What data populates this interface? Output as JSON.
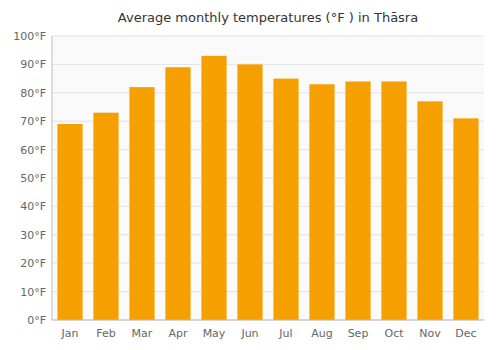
{
  "chart_data": {
    "type": "bar",
    "title": "Average monthly temperatures (°F ) in Thāsra",
    "categories": [
      "Jan",
      "Feb",
      "Mar",
      "Apr",
      "May",
      "Jun",
      "Jul",
      "Aug",
      "Sep",
      "Oct",
      "Nov",
      "Dec"
    ],
    "values": [
      69,
      73,
      82,
      89,
      93,
      90,
      85,
      83,
      84,
      84,
      77,
      71
    ],
    "color": "#F5A000",
    "ylim": [
      0,
      100
    ],
    "yticks": [
      {
        "value": 0,
        "label": "0°F"
      },
      {
        "value": 10,
        "label": "10°F"
      },
      {
        "value": 20,
        "label": "20°F"
      },
      {
        "value": 30,
        "label": "30°F"
      },
      {
        "value": 40,
        "label": "40°F"
      },
      {
        "value": 50,
        "label": "50°F"
      },
      {
        "value": 60,
        "label": "60°F"
      },
      {
        "value": 70,
        "label": "70°F"
      },
      {
        "value": 80,
        "label": "80°F"
      },
      {
        "value": 90,
        "label": "90°F"
      },
      {
        "value": 100,
        "label": "100°F"
      }
    ],
    "grid": true
  }
}
